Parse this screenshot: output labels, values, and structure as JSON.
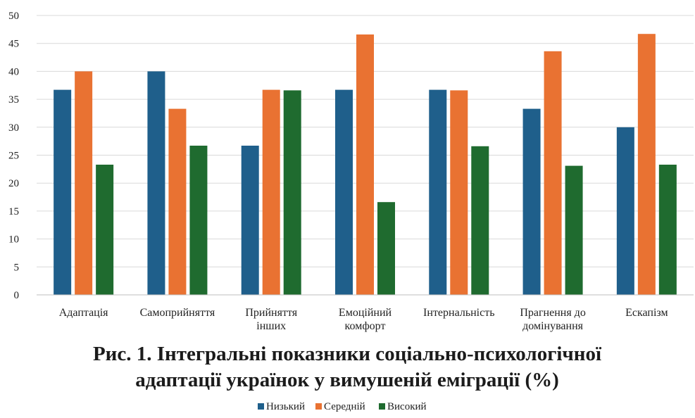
{
  "chart_data": {
    "type": "bar",
    "title_lines": [
      "Рис. 1. Інтегральні показники  соціально-психологічної",
      "адаптації українок у вимушеній еміграції (%)"
    ],
    "categories": [
      [
        "Адаптація"
      ],
      [
        "Самоприйняття"
      ],
      [
        "Прийняття",
        "інших"
      ],
      [
        "Емоційний",
        "комфорт"
      ],
      [
        "Інтернальність"
      ],
      [
        "Прагнення до",
        "домінування"
      ],
      [
        "Ескапізм"
      ]
    ],
    "series": [
      {
        "name": "Низький",
        "color": "#1f5f8b",
        "values": [
          36.7,
          40.0,
          26.7,
          36.7,
          36.7,
          33.3,
          30.0
        ]
      },
      {
        "name": "Середній",
        "color": "#e97232",
        "values": [
          40.0,
          33.3,
          36.7,
          46.6,
          36.6,
          43.6,
          46.7
        ]
      },
      {
        "name": "Високий",
        "color": "#1f6b2f",
        "values": [
          23.3,
          26.7,
          36.6,
          16.6,
          26.6,
          23.1,
          23.3
        ]
      }
    ],
    "ylim": [
      0,
      50
    ],
    "yticks": [
      0,
      5,
      10,
      15,
      20,
      25,
      30,
      35,
      40,
      45,
      50
    ],
    "grid": true,
    "legend_position": "bottom",
    "xlabel": "",
    "ylabel": ""
  }
}
